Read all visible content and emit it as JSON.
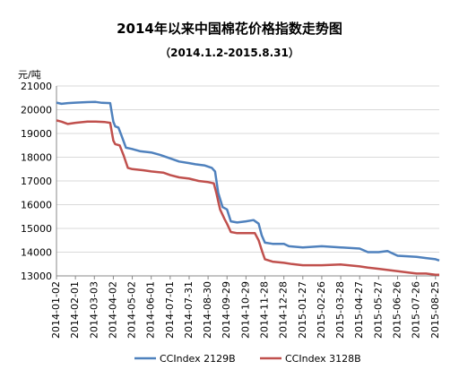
{
  "chart_data": {
    "type": "line",
    "title": "2014年以来中国棉花价格指数走势图",
    "subtitle": "（2014.1.2-2015.8.31）",
    "ylabel": "元/吨",
    "ylim": [
      13000,
      21000
    ],
    "yticks": [
      13000,
      14000,
      15000,
      16000,
      17000,
      18000,
      19000,
      20000,
      21000
    ],
    "xlim": [
      "2014-01-02",
      "2015-08-31"
    ],
    "x_tick_labels": [
      "2014-01-02",
      "2014-02-01",
      "2014-03-03",
      "2014-04-02",
      "2014-05-02",
      "2014-06-01",
      "2014-07-01",
      "2014-07-31",
      "2014-08-30",
      "2014-09-29",
      "2014-10-29",
      "2014-11-28",
      "2014-12-28",
      "2015-01-27",
      "2015-02-26",
      "2015-03-28",
      "2015-04-27",
      "2015-05-27",
      "2015-06-26",
      "2015-07-26",
      "2015-08-25"
    ],
    "grid": true,
    "legend_position": "bottom",
    "series": [
      {
        "name": "CCIndex 2129B",
        "color": "#4f81bd",
        "points": [
          [
            "2014-01-02",
            20300
          ],
          [
            "2014-01-10",
            20250
          ],
          [
            "2014-01-20",
            20280
          ],
          [
            "2014-02-01",
            20300
          ],
          [
            "2014-02-20",
            20320
          ],
          [
            "2014-03-05",
            20330
          ],
          [
            "2014-03-15",
            20290
          ],
          [
            "2014-03-28",
            20280
          ],
          [
            "2014-04-02",
            19500
          ],
          [
            "2014-04-05",
            19300
          ],
          [
            "2014-04-10",
            19250
          ],
          [
            "2014-04-15",
            18900
          ],
          [
            "2014-04-22",
            18400
          ],
          [
            "2014-05-01",
            18350
          ],
          [
            "2014-05-15",
            18250
          ],
          [
            "2014-06-01",
            18200
          ],
          [
            "2014-06-15",
            18100
          ],
          [
            "2014-07-01",
            17950
          ],
          [
            "2014-07-15",
            17820
          ],
          [
            "2014-07-31",
            17750
          ],
          [
            "2014-08-10",
            17700
          ],
          [
            "2014-08-25",
            17650
          ],
          [
            "2014-09-05",
            17550
          ],
          [
            "2014-09-10",
            17400
          ],
          [
            "2014-09-15",
            16500
          ],
          [
            "2014-09-22",
            15900
          ],
          [
            "2014-09-29",
            15800
          ],
          [
            "2014-10-05",
            15300
          ],
          [
            "2014-10-15",
            15250
          ],
          [
            "2014-10-29",
            15300
          ],
          [
            "2014-11-10",
            15350
          ],
          [
            "2014-11-18",
            15200
          ],
          [
            "2014-11-23",
            14700
          ],
          [
            "2014-11-28",
            14400
          ],
          [
            "2014-12-10",
            14350
          ],
          [
            "2014-12-28",
            14350
          ],
          [
            "2015-01-05",
            14250
          ],
          [
            "2015-01-27",
            14200
          ],
          [
            "2015-02-26",
            14250
          ],
          [
            "2015-03-28",
            14200
          ],
          [
            "2015-04-27",
            14150
          ],
          [
            "2015-05-10",
            14000
          ],
          [
            "2015-05-27",
            14000
          ],
          [
            "2015-06-10",
            14050
          ],
          [
            "2015-06-26",
            13850
          ],
          [
            "2015-07-26",
            13800
          ],
          [
            "2015-08-10",
            13750
          ],
          [
            "2015-08-25",
            13700
          ],
          [
            "2015-08-31",
            13650
          ]
        ]
      },
      {
        "name": "CCIndex 3128B",
        "color": "#c0504d",
        "points": [
          [
            "2014-01-02",
            19550
          ],
          [
            "2014-01-10",
            19500
          ],
          [
            "2014-01-20",
            19400
          ],
          [
            "2014-02-01",
            19450
          ],
          [
            "2014-02-20",
            19500
          ],
          [
            "2014-03-05",
            19500
          ],
          [
            "2014-03-20",
            19480
          ],
          [
            "2014-03-28",
            19450
          ],
          [
            "2014-04-02",
            18700
          ],
          [
            "2014-04-05",
            18550
          ],
          [
            "2014-04-12",
            18500
          ],
          [
            "2014-04-18",
            18100
          ],
          [
            "2014-04-25",
            17550
          ],
          [
            "2014-05-02",
            17500
          ],
          [
            "2014-05-20",
            17450
          ],
          [
            "2014-06-01",
            17400
          ],
          [
            "2014-06-20",
            17350
          ],
          [
            "2014-07-01",
            17250
          ],
          [
            "2014-07-15",
            17150
          ],
          [
            "2014-07-31",
            17100
          ],
          [
            "2014-08-15",
            17000
          ],
          [
            "2014-08-30",
            16950
          ],
          [
            "2014-09-08",
            16900
          ],
          [
            "2014-09-12",
            16500
          ],
          [
            "2014-09-18",
            15800
          ],
          [
            "2014-09-25",
            15400
          ],
          [
            "2014-09-29",
            15200
          ],
          [
            "2014-10-05",
            14850
          ],
          [
            "2014-10-15",
            14800
          ],
          [
            "2014-10-29",
            14800
          ],
          [
            "2014-11-12",
            14800
          ],
          [
            "2014-11-18",
            14500
          ],
          [
            "2014-11-24",
            14000
          ],
          [
            "2014-11-28",
            13700
          ],
          [
            "2014-12-10",
            13600
          ],
          [
            "2014-12-28",
            13550
          ],
          [
            "2015-01-10",
            13500
          ],
          [
            "2015-01-27",
            13450
          ],
          [
            "2015-02-26",
            13450
          ],
          [
            "2015-03-28",
            13480
          ],
          [
            "2015-04-27",
            13400
          ],
          [
            "2015-05-10",
            13350
          ],
          [
            "2015-05-27",
            13300
          ],
          [
            "2015-06-26",
            13200
          ],
          [
            "2015-07-10",
            13150
          ],
          [
            "2015-07-26",
            13100
          ],
          [
            "2015-08-10",
            13100
          ],
          [
            "2015-08-25",
            13050
          ],
          [
            "2015-08-31",
            13050
          ]
        ]
      }
    ]
  }
}
